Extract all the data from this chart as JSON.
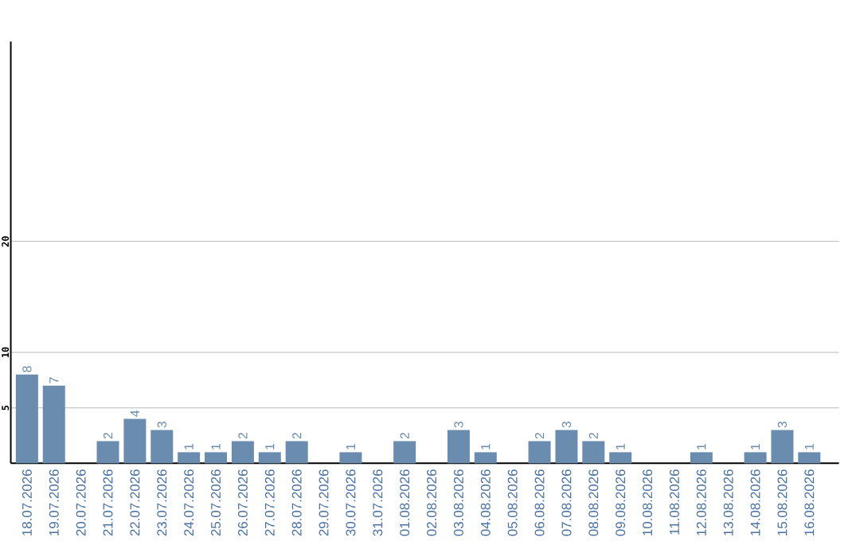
{
  "chart_data": {
    "type": "bar",
    "categories": [
      "18.07.2026",
      "19.07.2026",
      "20.07.2026",
      "21.07.2026",
      "22.07.2026",
      "23.07.2026",
      "24.07.2026",
      "25.07.2026",
      "26.07.2026",
      "27.07.2026",
      "28.07.2026",
      "29.07.2026",
      "30.07.2026",
      "31.07.2026",
      "01.08.2026",
      "02.08.2026",
      "03.08.2026",
      "04.08.2026",
      "05.08.2026",
      "06.08.2026",
      "07.08.2026",
      "08.08.2026",
      "09.08.2026",
      "10.08.2026",
      "11.08.2026",
      "12.08.2026",
      "13.08.2026",
      "14.08.2026",
      "15.08.2026",
      "16.08.2026"
    ],
    "values": [
      8,
      7,
      0,
      2,
      4,
      3,
      1,
      1,
      2,
      1,
      2,
      0,
      1,
      0,
      2,
      0,
      3,
      1,
      0,
      2,
      3,
      2,
      1,
      0,
      0,
      1,
      0,
      1,
      3,
      1
    ],
    "value_labels": [
      "8",
      "7",
      null,
      "2",
      "4",
      "3",
      "1",
      "1",
      "2",
      "1",
      "2",
      null,
      "1",
      null,
      "2",
      null,
      "3",
      "1",
      null,
      "2",
      "3",
      "2",
      "1",
      null,
      null,
      "1",
      null,
      "1",
      "3",
      "1"
    ],
    "color": "#6a8caf",
    "ylim": [
      0,
      38
    ],
    "yticks": [
      5,
      10,
      20
    ],
    "grid": "y"
  }
}
